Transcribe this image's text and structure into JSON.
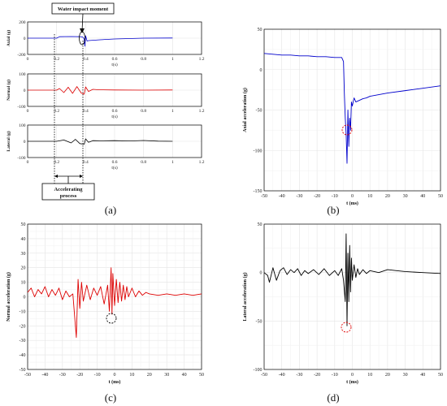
{
  "captions": [
    "(a)",
    "(b)",
    "(c)",
    "(d)"
  ],
  "panel_a": {
    "annotation_impact": "Water impact moment",
    "annotation_accel_line1": "Accelerating",
    "annotation_accel_line2": "process",
    "subplots": [
      {
        "ylabel": "Axial (g)",
        "xlabel": "t(s)",
        "xlim": [
          0,
          1.2
        ],
        "ylim": [
          -200,
          200
        ],
        "xticks": [
          "0",
          "0.2",
          "0.4",
          "0.6",
          "0.8",
          "1",
          "1.2"
        ],
        "yticks": [
          "200",
          "0",
          "-200"
        ],
        "color": "#0000cc"
      },
      {
        "ylabel": "Normal (g)",
        "xlabel": "t(s)",
        "xlim": [
          0,
          1.2
        ],
        "ylim": [
          -100,
          100
        ],
        "xticks": [
          "0",
          "0.2",
          "0.4",
          "0.6",
          "0.8",
          "1",
          "1.2"
        ],
        "yticks": [
          "100",
          "0",
          "-100"
        ],
        "color": "#dd0000"
      },
      {
        "ylabel": "Lateral (g)",
        "xlabel": "t(s)",
        "xlim": [
          0,
          1.2
        ],
        "ylim": [
          -100,
          100
        ],
        "xticks": [
          "0",
          "0.2",
          "0.4",
          "0.6",
          "0.8",
          "1",
          "1.2"
        ],
        "yticks": [
          "100",
          "0",
          "-100"
        ],
        "color": "#000000"
      }
    ]
  },
  "chart_data": [
    {
      "type": "line",
      "panel": "a-axial",
      "xlabel": "t(s)",
      "ylabel": "Axial (g)",
      "xlim": [
        0,
        1.2
      ],
      "ylim": [
        -200,
        200
      ],
      "series": [
        {
          "color": "#0000cc",
          "x": [
            0,
            0.1,
            0.2,
            0.22,
            0.3,
            0.36,
            0.38,
            0.39,
            0.395,
            0.4,
            0.41,
            0.42,
            0.5,
            0.6,
            0.8,
            1.0
          ],
          "y": [
            0,
            0,
            0,
            18,
            20,
            18,
            15,
            -10,
            -100,
            30,
            -35,
            -30,
            -20,
            -10,
            0,
            2
          ]
        }
      ]
    },
    {
      "type": "line",
      "panel": "a-normal",
      "xlabel": "t(s)",
      "ylabel": "Normal (g)",
      "xlim": [
        0,
        1.2
      ],
      "ylim": [
        -100,
        100
      ],
      "series": [
        {
          "color": "#dd0000",
          "x": [
            0,
            0.2,
            0.22,
            0.25,
            0.28,
            0.31,
            0.34,
            0.37,
            0.39,
            0.4,
            0.42,
            0.45,
            0.5,
            0.6,
            0.8,
            1.0
          ],
          "y": [
            0,
            0,
            10,
            -15,
            18,
            -20,
            22,
            -18,
            -25,
            20,
            -8,
            5,
            2,
            1,
            0,
            1
          ]
        }
      ]
    },
    {
      "type": "line",
      "panel": "a-lateral",
      "xlabel": "t(s)",
      "ylabel": "Lateral (g)",
      "xlim": [
        0,
        1.2
      ],
      "ylim": [
        -100,
        100
      ],
      "series": [
        {
          "color": "#000000",
          "x": [
            0,
            0.2,
            0.25,
            0.3,
            0.33,
            0.36,
            0.39,
            0.4,
            0.42,
            0.45,
            0.5,
            0.6,
            0.7,
            0.8,
            0.9,
            1.0
          ],
          "y": [
            0,
            0,
            8,
            -10,
            12,
            -14,
            -18,
            15,
            -6,
            4,
            3,
            4,
            2,
            5,
            1,
            0
          ]
        }
      ]
    },
    {
      "type": "line",
      "panel": "b",
      "xlabel": "t (ms)",
      "ylabel": "Axial acceleration (g)",
      "xlim": [
        -50,
        50
      ],
      "ylim": [
        -150,
        50
      ],
      "xticks": [
        -50,
        -40,
        -30,
        -20,
        -10,
        0,
        10,
        20,
        30,
        40,
        50
      ],
      "yticks": [
        50,
        0,
        -50,
        -100,
        -150
      ],
      "series": [
        {
          "color": "#0000cc",
          "x": [
            -50,
            -45,
            -40,
            -35,
            -30,
            -25,
            -20,
            -15,
            -10,
            -6,
            -5,
            -4.5,
            -4,
            -3.5,
            -3,
            -2.5,
            -2,
            -1.5,
            -1,
            -0.5,
            0,
            1,
            2,
            4,
            6,
            8,
            10,
            15,
            20,
            30,
            40,
            50
          ],
          "y": [
            20,
            19,
            18,
            18,
            17,
            17,
            16,
            16,
            15,
            15,
            10,
            -30,
            -60,
            -80,
            -116,
            -50,
            -95,
            -60,
            -75,
            -40,
            -45,
            -35,
            -40,
            -38,
            -36,
            -35,
            -33,
            -31,
            -29,
            -26,
            -23,
            -20
          ]
        }
      ]
    },
    {
      "type": "line",
      "panel": "c",
      "xlabel": "t (ms)",
      "ylabel": "Normal acceleration (g)",
      "xlim": [
        -50,
        50
      ],
      "ylim": [
        -50,
        50
      ],
      "xticks": [
        -50,
        -40,
        -30,
        -20,
        -10,
        0,
        10,
        20,
        30,
        40,
        50
      ],
      "yticks": [
        50,
        40,
        30,
        20,
        10,
        0,
        -10,
        -20,
        -30,
        -40,
        -50
      ],
      "series": [
        {
          "color": "#dd0000",
          "x": [
            -50,
            -48,
            -46,
            -44,
            -42,
            -40,
            -38,
            -36,
            -34,
            -32,
            -30,
            -28,
            -26,
            -24,
            -22,
            -21,
            -20,
            -19,
            -18,
            -16,
            -14,
            -12,
            -10,
            -8,
            -6,
            -4,
            -3,
            -2,
            -1.5,
            -1,
            0,
            1,
            2,
            3,
            4,
            5,
            6,
            7,
            8,
            10,
            12,
            14,
            16,
            18,
            20,
            25,
            30,
            35,
            40,
            45,
            50
          ],
          "y": [
            3,
            6,
            0,
            5,
            2,
            7,
            0,
            5,
            1,
            6,
            -2,
            4,
            0,
            2,
            -28,
            12,
            -8,
            10,
            -3,
            8,
            -2,
            6,
            1,
            7,
            -5,
            8,
            -10,
            20,
            -12,
            16,
            -6,
            12,
            -4,
            10,
            -3,
            8,
            -2,
            7,
            0,
            6,
            0,
            4,
            1,
            3,
            2,
            1,
            2,
            1,
            2,
            1,
            2
          ]
        }
      ]
    },
    {
      "type": "line",
      "panel": "d",
      "xlabel": "t (ms)",
      "ylabel": "Lateral acceleration (g)",
      "xlim": [
        -50,
        50
      ],
      "ylim": [
        -100,
        50
      ],
      "xticks": [
        -50,
        -40,
        -30,
        -20,
        -10,
        0,
        10,
        20,
        30,
        40,
        50
      ],
      "yticks": [
        50,
        0,
        -50,
        -100
      ],
      "series": [
        {
          "color": "#000000",
          "x": [
            -50,
            -48,
            -47,
            -45,
            -43,
            -41,
            -39,
            -37,
            -35,
            -33,
            -31,
            -29,
            -27,
            -25,
            -22,
            -19,
            -16,
            -13,
            -10,
            -8,
            -6,
            -5,
            -4,
            -3.5,
            -3,
            -2.5,
            -2,
            -1.5,
            -1,
            -0.5,
            0,
            1,
            2,
            3,
            4,
            6,
            8,
            10,
            15,
            20,
            25,
            30,
            40,
            50
          ],
          "y": [
            0,
            -3,
            -10,
            5,
            -8,
            2,
            5,
            -2,
            3,
            0,
            4,
            -3,
            2,
            -1,
            3,
            -2,
            4,
            -3,
            2,
            -3,
            4,
            -8,
            -30,
            40,
            -55,
            20,
            -30,
            28,
            -20,
            15,
            -8,
            8,
            -5,
            4,
            -2,
            3,
            -1,
            2,
            0,
            3,
            2,
            1,
            0,
            -1
          ]
        }
      ]
    }
  ]
}
